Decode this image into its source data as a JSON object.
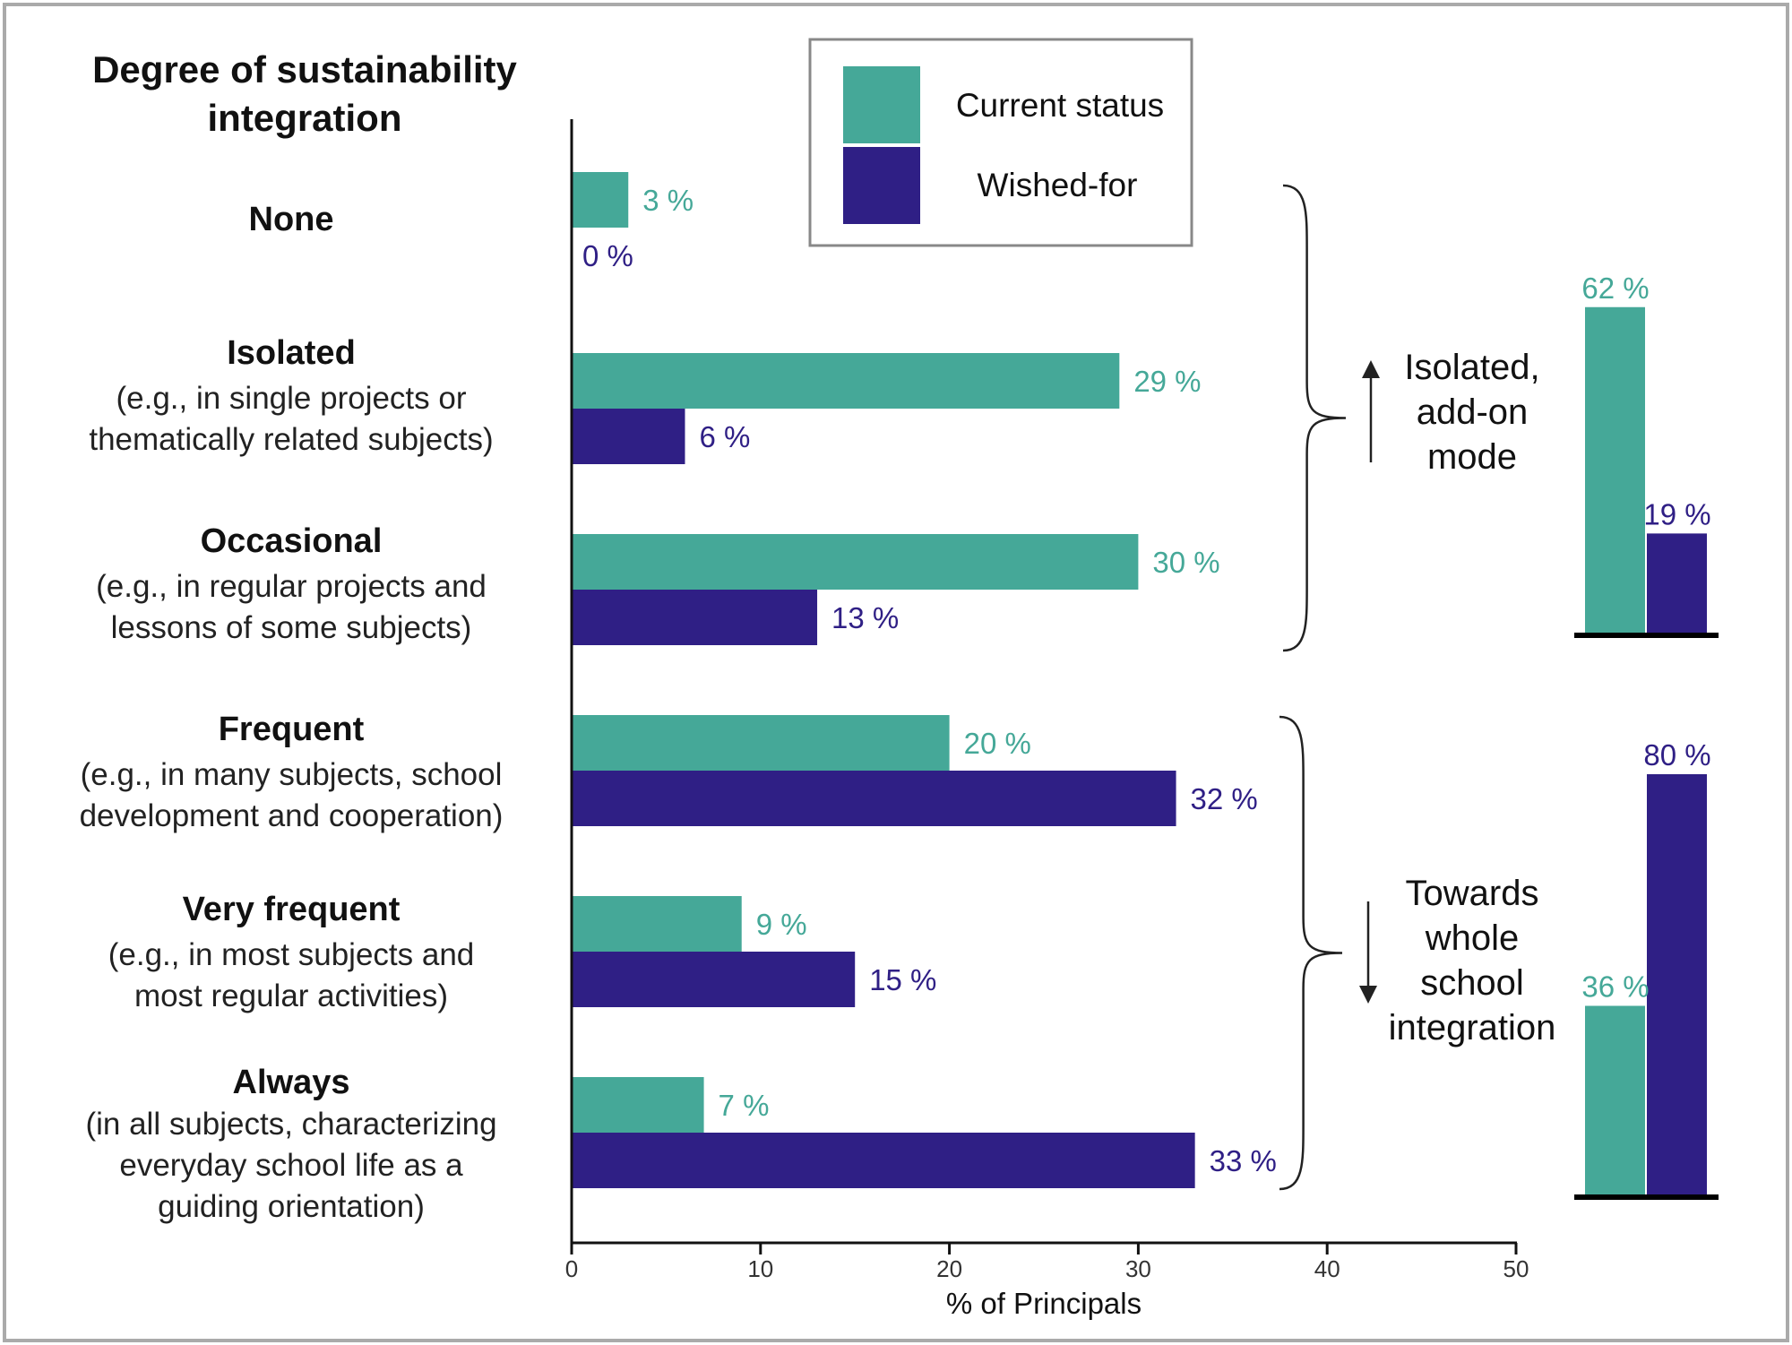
{
  "chart_data": {
    "type": "bar",
    "orientation": "horizontal",
    "y_title": [
      "Degree of sustainability",
      "integration"
    ],
    "xlabel": "% of Principals",
    "xlim": [
      0,
      50
    ],
    "xticks": [
      0,
      10,
      20,
      30,
      40,
      50
    ],
    "legend": {
      "position": "top-center",
      "entries": [
        "Current status",
        "Wished-for"
      ]
    },
    "colors": {
      "current": "#45A898",
      "wished": "#2F1F85",
      "frame": "#AAAAAA",
      "axis": "#111111"
    },
    "categories": [
      {
        "name": "None",
        "desc": []
      },
      {
        "name": "Isolated",
        "desc": [
          "(e.g., in single projects or",
          "thematically related subjects)"
        ]
      },
      {
        "name": "Occasional",
        "desc": [
          "(e.g., in regular projects and",
          "lessons of some subjects)"
        ]
      },
      {
        "name": "Frequent",
        "desc": [
          "(e.g., in many subjects, school",
          "development and cooperation)"
        ]
      },
      {
        "name": "Very frequent",
        "desc": [
          "(e.g., in most subjects and",
          "most regular activities)"
        ]
      },
      {
        "name": "Always",
        "desc": [
          "(in all subjects, characterizing",
          "everyday school life as a",
          "guiding orientation)"
        ]
      }
    ],
    "series": [
      {
        "name": "Current status",
        "values": [
          3,
          29,
          30,
          20,
          9,
          7
        ],
        "labels": [
          "3 %",
          "29 %",
          "30 %",
          "20 %",
          "9 %",
          "7 %"
        ]
      },
      {
        "name": "Wished-for",
        "values": [
          0,
          6,
          13,
          32,
          15,
          33
        ],
        "labels": [
          "0 %",
          "6 %",
          "13 %",
          "32 %",
          "15 %",
          "33 %"
        ]
      }
    ],
    "groups": [
      {
        "label": [
          "Isolated,",
          "add-on",
          "mode"
        ],
        "direction": "up",
        "current": 62,
        "wished": 19,
        "current_label": "62 %",
        "wished_label": "19 %"
      },
      {
        "label": [
          "Towards",
          "whole",
          "school",
          "integration"
        ],
        "direction": "down",
        "current": 36,
        "wished": 80,
        "current_label": "36 %",
        "wished_label": "80 %"
      }
    ]
  }
}
